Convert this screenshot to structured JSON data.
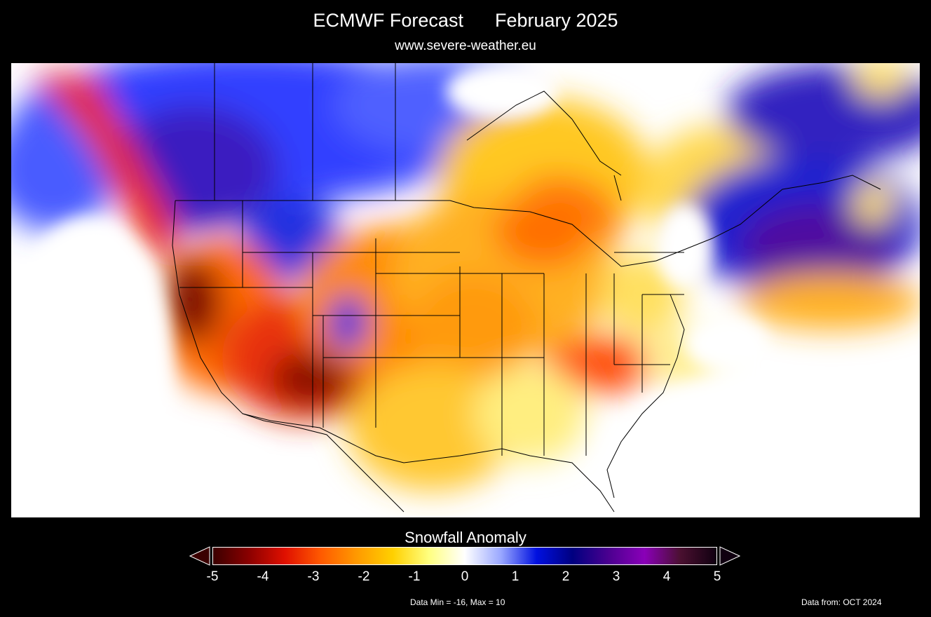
{
  "header": {
    "title": "ECMWF Forecast      February 2025",
    "subtitle": "www.severe-weather.eu"
  },
  "map": {
    "variable": "Snowfall Anomaly",
    "region": "North America",
    "background_color": "#ffffff"
  },
  "colorbar": {
    "label": "Snowfall Anomaly",
    "range": [
      -5,
      5
    ],
    "ticks": [
      "-5",
      "-4",
      "-3",
      "-2",
      "-1",
      "0",
      "1",
      "2",
      "3",
      "4",
      "5"
    ],
    "stops": [
      "#3b0000",
      "#8b0000",
      "#e01000",
      "#ff5a00",
      "#ff9a00",
      "#ffd000",
      "#ffff80",
      "#ffffff",
      "#9aa8ff",
      "#0010e0",
      "#000080",
      "#4b0090",
      "#8a00b8",
      "#4a1030",
      "#100010"
    ]
  },
  "footer": {
    "data_minmax": "Data Min = -16, Max = 10",
    "data_from": "Data from: OCT 2024"
  }
}
